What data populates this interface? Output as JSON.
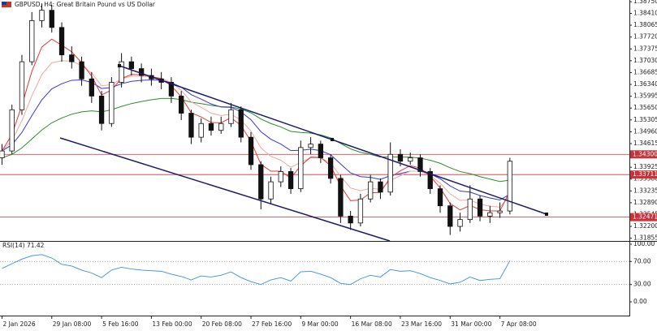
{
  "chart_data": {
    "type": "candlestick",
    "title": "GBPUSD, H4:  Great Britain Pound vs US Dollar",
    "ylim": [
      1.318,
      1.388
    ],
    "yticks": [
      {
        "value": 1.3875,
        "label": "1.38750"
      },
      {
        "value": 1.3841,
        "label": "1.38410"
      },
      {
        "value": 1.38065,
        "label": "1.38065"
      },
      {
        "value": 1.3772,
        "label": "1.37720"
      },
      {
        "value": 1.37375,
        "label": "1.37375"
      },
      {
        "value": 1.3703,
        "label": "1.37030"
      },
      {
        "value": 1.36685,
        "label": "1.36685"
      },
      {
        "value": 1.3634,
        "label": "1.36340"
      },
      {
        "value": 1.35995,
        "label": "1.35995"
      },
      {
        "value": 1.3565,
        "label": "1.35650"
      },
      {
        "value": 1.35305,
        "label": "1.35305"
      },
      {
        "value": 1.3496,
        "label": "1.34960"
      },
      {
        "value": 1.34615,
        "label": "1.34615"
      },
      {
        "value": 1.3427,
        "label": "1.34270"
      },
      {
        "value": 1.33925,
        "label": "1.33925"
      },
      {
        "value": 1.3358,
        "label": "1.33580"
      },
      {
        "value": 1.33235,
        "label": "1.33235"
      },
      {
        "value": 1.3289,
        "label": "1.32890"
      },
      {
        "value": 1.32545,
        "label": "1.32545"
      },
      {
        "value": 1.322,
        "label": "1.32200"
      },
      {
        "value": 1.31855,
        "label": "1.31855"
      }
    ],
    "xlim": [
      -0.2,
      63
    ],
    "xticks": [
      {
        "value": 0,
        "label": "2 Jan 2026"
      },
      {
        "value": 5,
        "label": "29 Jan 08:00"
      },
      {
        "value": 10,
        "label": "5 Feb 16:00"
      },
      {
        "value": 15,
        "label": "13 Feb 00:00"
      },
      {
        "value": 20,
        "label": "20 Feb 08:00"
      },
      {
        "value": 25,
        "label": "27 Feb 16:00"
      },
      {
        "value": 30,
        "label": "9 Mar 00:00"
      },
      {
        "value": 35,
        "label": "16 Mar 08:00"
      },
      {
        "value": 40,
        "label": "23 Mar 16:00"
      },
      {
        "value": 45,
        "label": "31 Mar 00:00"
      },
      {
        "value": 50,
        "label": "7 Apr 08:00"
      }
    ],
    "open": [
      1.342,
      1.344,
      1.356,
      1.37,
      1.382,
      1.385,
      1.38,
      1.372,
      1.37,
      1.365,
      1.36,
      1.352,
      1.364,
      1.37,
      1.368,
      1.366,
      1.365,
      1.364,
      1.36,
      1.355,
      1.348,
      1.352,
      1.35,
      1.352,
      1.356,
      1.348,
      1.34,
      1.33,
      1.335,
      1.338,
      1.333,
      1.345,
      1.346,
      1.342,
      1.336,
      1.325,
      1.323,
      1.33,
      1.335,
      1.332,
      1.343,
      1.341,
      1.342,
      1.338,
      1.333,
      1.328,
      1.322,
      1.324,
      1.33,
      1.325,
      1.326,
      1.3265
    ],
    "high": [
      1.346,
      1.3575,
      1.372,
      1.3845,
      1.387,
      1.3865,
      1.3815,
      1.3745,
      1.3715,
      1.367,
      1.3615,
      1.3655,
      1.3725,
      1.3715,
      1.3695,
      1.368,
      1.367,
      1.3655,
      1.3615,
      1.356,
      1.3535,
      1.354,
      1.354,
      1.358,
      1.357,
      1.3495,
      1.341,
      1.3365,
      1.3395,
      1.339,
      1.347,
      1.348,
      1.347,
      1.343,
      1.337,
      1.3265,
      1.3315,
      1.337,
      1.336,
      1.3465,
      1.3445,
      1.3435,
      1.343,
      1.339,
      1.334,
      1.329,
      1.326,
      1.334,
      1.331,
      1.328,
      1.329,
      1.342
    ],
    "low": [
      1.34,
      1.343,
      1.3545,
      1.369,
      1.38,
      1.3785,
      1.37,
      1.368,
      1.363,
      1.358,
      1.35,
      1.351,
      1.3625,
      1.366,
      1.364,
      1.363,
      1.362,
      1.358,
      1.353,
      1.346,
      1.3465,
      1.3485,
      1.349,
      1.351,
      1.3465,
      1.3385,
      1.327,
      1.3285,
      1.3335,
      1.3315,
      1.332,
      1.343,
      1.3405,
      1.3345,
      1.323,
      1.321,
      1.322,
      1.329,
      1.33,
      1.331,
      1.3395,
      1.34,
      1.3365,
      1.3315,
      1.326,
      1.3195,
      1.3205,
      1.323,
      1.3235,
      1.323,
      1.3245,
      1.3255
    ],
    "close": [
      1.344,
      1.356,
      1.37,
      1.382,
      1.385,
      1.38,
      1.372,
      1.37,
      1.365,
      1.36,
      1.352,
      1.364,
      1.37,
      1.368,
      1.366,
      1.365,
      1.364,
      1.36,
      1.355,
      1.348,
      1.352,
      1.35,
      1.352,
      1.356,
      1.348,
      1.34,
      1.33,
      1.335,
      1.338,
      1.333,
      1.345,
      1.346,
      1.342,
      1.336,
      1.325,
      1.323,
      1.33,
      1.335,
      1.332,
      1.343,
      1.341,
      1.342,
      1.338,
      1.333,
      1.328,
      1.322,
      1.324,
      1.33,
      1.325,
      1.326,
      1.3265,
      1.341
    ],
    "moving_averages": [
      {
        "color": "#2e8b2e",
        "values": [
          1.342,
          1.343,
          1.3449,
          1.3475,
          1.3501,
          1.3522,
          1.3536,
          1.3547,
          1.3554,
          1.3557,
          1.3554,
          1.356,
          1.357,
          1.3578,
          1.3584,
          1.3589,
          1.3593,
          1.3593,
          1.359,
          1.3582,
          1.3578,
          1.3573,
          1.3569,
          1.3568,
          1.3562,
          1.3551,
          1.3533,
          1.352,
          1.351,
          1.3497,
          1.3494,
          1.3492,
          1.3487,
          1.3478,
          1.3462,
          1.3446,
          1.3436,
          1.343,
          1.3422,
          1.3423,
          1.3422,
          1.3422,
          1.3419,
          1.3413,
          1.3404,
          1.3391,
          1.338,
          1.3374,
          1.3365,
          1.3358,
          1.3351,
          1.3355
        ]
      },
      {
        "color": "#3838d0",
        "values": [
          1.344,
          1.3458,
          1.3494,
          1.3543,
          1.3589,
          1.3621,
          1.3636,
          1.3646,
          1.3647,
          1.364,
          1.3622,
          1.3625,
          1.3636,
          1.3643,
          1.3646,
          1.3647,
          1.3646,
          1.3639,
          1.3626,
          1.3604,
          1.3591,
          1.3577,
          1.3568,
          1.3567,
          1.3554,
          1.3531,
          1.3496,
          1.3474,
          1.346,
          1.3441,
          1.3442,
          1.3445,
          1.3441,
          1.3429,
          1.3402,
          1.3376,
          1.3365,
          1.3363,
          1.3357,
          1.3368,
          1.3374,
          1.3381,
          1.3381,
          1.3373,
          1.3359,
          1.3338,
          1.3323,
          1.332,
          1.331,
          1.3303,
          1.3297,
          1.3314
        ]
      },
      {
        "color": "#f2a7a2",
        "values": [
          1.344,
          1.347,
          1.3528,
          1.3601,
          1.3663,
          1.3697,
          1.3703,
          1.3702,
          1.3689,
          1.3667,
          1.363,
          1.3633,
          1.365,
          1.3658,
          1.3658,
          1.3656,
          1.3652,
          1.3639,
          1.3617,
          1.3583,
          1.3567,
          1.355,
          1.3543,
          1.3547,
          1.353,
          1.3498,
          1.3449,
          1.3424,
          1.3413,
          1.3392,
          1.3407,
          1.342,
          1.342,
          1.3405,
          1.3366,
          1.3332,
          1.3324,
          1.3331,
          1.3328,
          1.3354,
          1.3368,
          1.3381,
          1.3381,
          1.3368,
          1.3346,
          1.3315,
          1.3296,
          1.3297,
          1.3285,
          1.3279,
          1.3276,
          1.331
        ]
      },
      {
        "color": "#e23a34",
        "values": [
          1.344,
          1.3488,
          1.3573,
          1.3672,
          1.3743,
          1.3766,
          1.3748,
          1.3729,
          1.3697,
          1.3658,
          1.3603,
          1.3618,
          1.3651,
          1.3663,
          1.3662,
          1.3657,
          1.365,
          1.363,
          1.3598,
          1.3551,
          1.3539,
          1.3523,
          1.3522,
          1.3537,
          1.3514,
          1.3468,
          1.3401,
          1.3381,
          1.3381,
          1.3361,
          1.3397,
          1.3422,
          1.3421,
          1.3397,
          1.3338,
          1.3295,
          1.3297,
          1.3318,
          1.3319,
          1.3363,
          1.3382,
          1.3397,
          1.339,
          1.3366,
          1.3332,
          1.3287,
          1.3268,
          1.3281,
          1.3269,
          1.3265,
          1.3265,
          1.3323
        ]
      }
    ],
    "levels": [
      {
        "value": 1.343,
        "label": "1.34300"
      },
      {
        "value": 1.33711,
        "label": "1.33711"
      },
      {
        "value": 1.32471,
        "label": "1.32471"
      }
    ],
    "level_color": "#c8323a",
    "rsi": {
      "title": "RSI(14) 71.42",
      "color": "#3a8ee6",
      "ylim": [
        0,
        100
      ],
      "yticks": [
        {
          "value": 100,
          "label": "100.00"
        },
        {
          "value": 70,
          "label": "70.00"
        },
        {
          "value": 30,
          "label": "30.00"
        },
        {
          "value": 0,
          "label": "0.00"
        }
      ],
      "values": [
        58,
        66,
        74,
        80,
        82,
        76,
        65,
        62,
        55,
        50,
        42,
        55,
        60,
        57,
        55,
        54,
        53,
        48,
        44,
        38,
        45,
        43,
        46,
        52,
        42,
        35,
        30,
        38,
        42,
        36,
        52,
        53,
        48,
        42,
        32,
        30,
        40,
        46,
        43,
        56,
        53,
        54,
        49,
        42,
        37,
        31,
        34,
        43,
        37,
        39,
        40,
        71.42
      ]
    }
  }
}
